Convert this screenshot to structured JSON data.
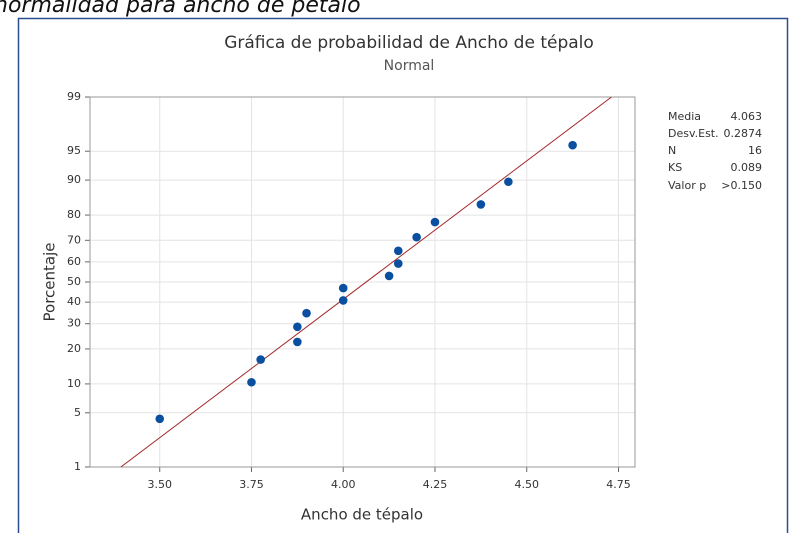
{
  "header": {
    "caption": "normalidad para ancho de pétalo"
  },
  "chart_data": {
    "type": "scatter",
    "title": "Gráfica de probabilidad de Ancho de tépalo",
    "subtitle": "Normal",
    "x_label": "Ancho de tépalo",
    "y_label": "Porcentaje",
    "yscale": "normal-probability",
    "grid": true,
    "xlim": [
      3.31,
      4.795
    ],
    "ylim": [
      1,
      99
    ],
    "xticks": [
      {
        "value": 3.5,
        "label": "3.50"
      },
      {
        "value": 3.75,
        "label": "3.75"
      },
      {
        "value": 4.0,
        "label": "4.00"
      },
      {
        "value": 4.25,
        "label": "4.25"
      },
      {
        "value": 4.5,
        "label": "4.50"
      },
      {
        "value": 4.75,
        "label": "4.75"
      }
    ],
    "yticks": [
      1,
      5,
      10,
      20,
      30,
      40,
      50,
      60,
      70,
      80,
      90,
      95,
      99
    ],
    "series": [
      {
        "color": "#0a4fa0",
        "x": [
          3.5,
          3.75,
          3.775,
          3.875,
          3.875,
          3.9,
          4.0,
          4.0,
          4.125,
          4.15,
          4.15,
          4.2,
          4.25,
          4.375,
          4.45,
          4.625
        ],
        "values": [
          4.27,
          10.37,
          16.46,
          22.56,
          28.66,
          34.76,
          40.85,
          46.95,
          53.05,
          59.15,
          65.24,
          71.34,
          77.44,
          83.54,
          89.63,
          95.73
        ]
      }
    ],
    "fit_line": {
      "color": "#a52a2a",
      "x": [
        3.394,
        4.731
      ],
      "values": [
        1,
        99
      ]
    },
    "stats": [
      {
        "label": "Media",
        "value": "4.063"
      },
      {
        "label": "Desv.Est.",
        "value": "0.2874"
      },
      {
        "label": "N",
        "value": "16"
      },
      {
        "label": "KS",
        "value": "0.089"
      },
      {
        "label": "Valor p",
        "value": ">0.150"
      }
    ]
  }
}
